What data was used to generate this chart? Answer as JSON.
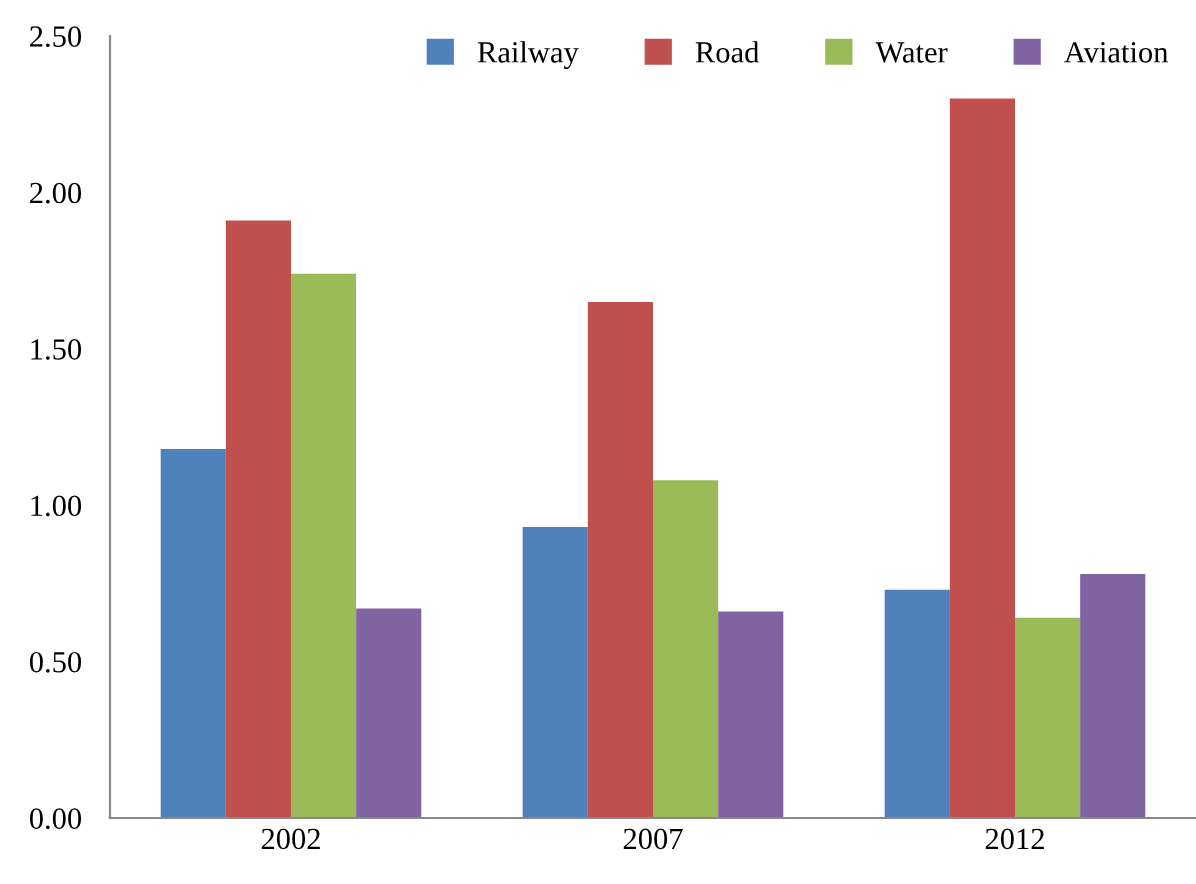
{
  "chart_data": {
    "type": "bar",
    "categories": [
      "2002",
      "2007",
      "2012"
    ],
    "series": [
      {
        "name": "Railway",
        "color": "#4f81bd",
        "values": [
          1.18,
          0.93,
          0.73
        ]
      },
      {
        "name": "Road",
        "color": "#c0504d",
        "values": [
          1.91,
          1.65,
          2.3
        ]
      },
      {
        "name": "Water",
        "color": "#9bbb59",
        "values": [
          1.74,
          1.08,
          0.64
        ]
      },
      {
        "name": "Aviation",
        "color": "#8064a2",
        "values": [
          0.67,
          0.66,
          0.78
        ]
      }
    ],
    "ylim": [
      0,
      2.5
    ],
    "yticks": [
      {
        "value": 0,
        "label": "0.00"
      },
      {
        "value": 0.5,
        "label": "0.50"
      },
      {
        "value": 1,
        "label": "1.00"
      },
      {
        "value": 1.5,
        "label": "1.50"
      },
      {
        "value": 2,
        "label": "2.00"
      },
      {
        "value": 2.5,
        "label": "2.50"
      }
    ],
    "grid": false,
    "legend": "top right"
  }
}
